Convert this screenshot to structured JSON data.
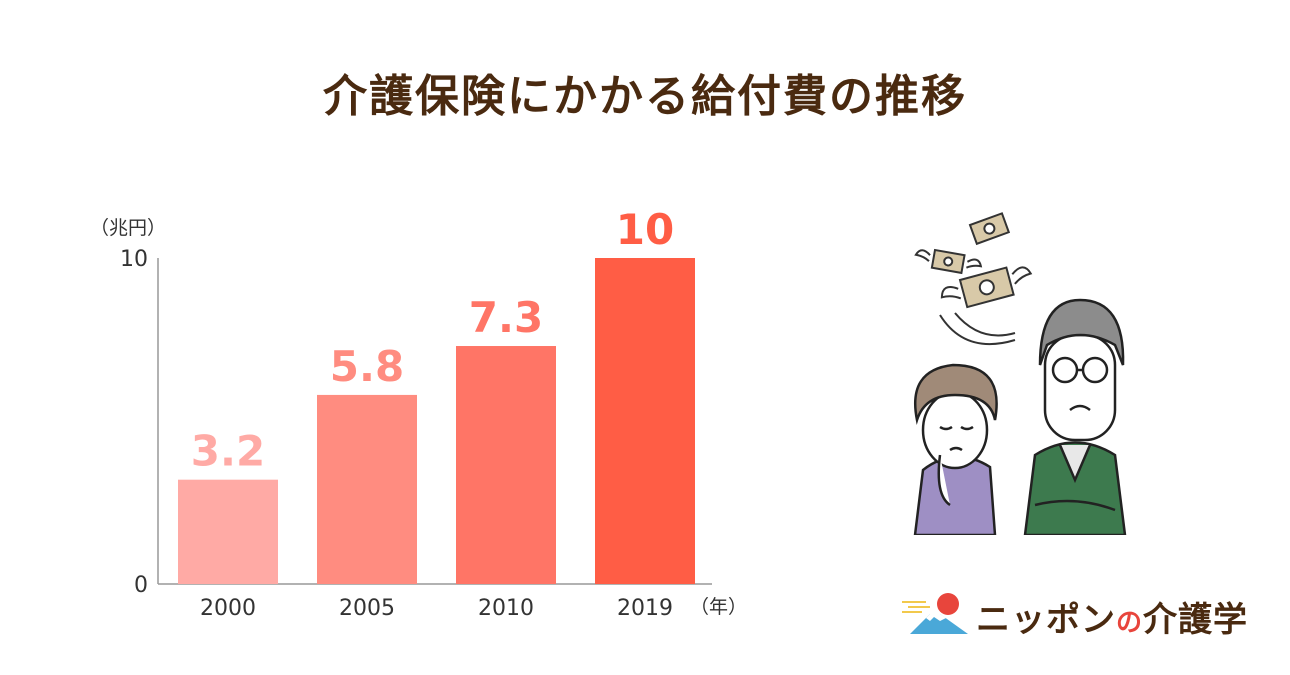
{
  "colors": {
    "title": "#4a2a10",
    "bars": [
      "#ffaaa5",
      "#ff8c80",
      "#ff7566",
      "#ff5d45"
    ],
    "labels": [
      "#ffaaa5",
      "#ff8c80",
      "#ff7566",
      "#ff5d45"
    ],
    "axis": "#999999"
  },
  "chart_data": {
    "type": "bar",
    "title": "介護保険にかかる給付費の推移",
    "unit_label": "（兆円）",
    "x_unit_label": "（年）",
    "categories": [
      "2000",
      "2005",
      "2010",
      "2019"
    ],
    "values": [
      3.2,
      5.8,
      7.3,
      10
    ],
    "data_labels": [
      "3.2",
      "5.8",
      "7.3",
      "10"
    ],
    "y_ticks": [
      "0",
      "10"
    ],
    "ylim": [
      0,
      10
    ],
    "grid": false,
    "legend": "none"
  },
  "logo": {
    "name_part1": "ニッポン",
    "name_no": "の",
    "name_part2": "介護学",
    "icon": "mount-fuji-sun-icon"
  },
  "illustration": {
    "icon": "worried-elderly-couple-flying-money-icon"
  }
}
